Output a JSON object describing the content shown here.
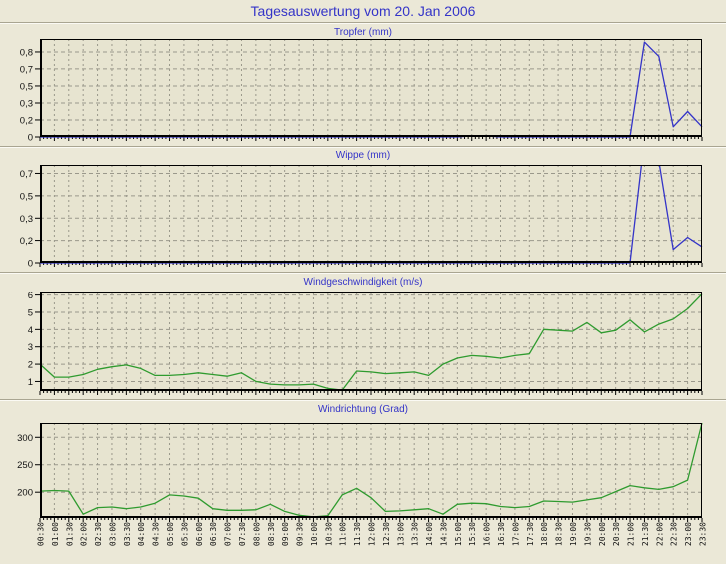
{
  "title": "Tagesauswertung vom 20. Jan 2006",
  "colors": {
    "background": "#ebe8d7",
    "plot_bg": "#e7e4d0",
    "grid": "#9a988b",
    "axis": "#000000",
    "title_blue": "#3434c8",
    "rain_line": "#3434c8",
    "wind_line": "#2f9b2f"
  },
  "chart_data": [
    {
      "type": "line",
      "title": "Tropfer (mm)",
      "legend_position": "none",
      "grid": true,
      "color_key": "rain_line",
      "color": "#3434c8",
      "ylim": [
        0,
        0.96
      ],
      "yticks": [
        {
          "v": 0.833,
          "label": "0,8"
        },
        {
          "v": 0.667,
          "label": "0,7"
        },
        {
          "v": 0.5,
          "label": "0,5"
        },
        {
          "v": 0.333,
          "label": "0,3"
        },
        {
          "v": 0.167,
          "label": "0,2"
        },
        {
          "v": 0,
          "label": "0"
        }
      ],
      "categories": [
        "00:30",
        "01:00",
        "01:30",
        "02:00",
        "02:30",
        "03:00",
        "03:30",
        "04:00",
        "04:30",
        "05:00",
        "05:30",
        "06:00",
        "06:30",
        "07:00",
        "07:30",
        "08:00",
        "08:30",
        "09:00",
        "09:30",
        "10:00",
        "10:30",
        "11:00",
        "11:30",
        "12:00",
        "12:30",
        "13:00",
        "13:30",
        "14:00",
        "14:30",
        "15:00",
        "15:30",
        "16:00",
        "16:30",
        "17:00",
        "17:30",
        "18:00",
        "18:30",
        "19:00",
        "19:30",
        "20:00",
        "20:30",
        "21:00",
        "21:30",
        "22:00",
        "22:30",
        "23:00",
        "23:30"
      ],
      "values": [
        0,
        0,
        0,
        0,
        0,
        0,
        0,
        0,
        0,
        0,
        0,
        0,
        0,
        0,
        0,
        0,
        0,
        0,
        0,
        0,
        0,
        0,
        0,
        0,
        0,
        0,
        0,
        0,
        0,
        0,
        0.01,
        0.01,
        0,
        0,
        0,
        0,
        0,
        0,
        0,
        0,
        0,
        0,
        0.93,
        0.79,
        0.1,
        0.25,
        0.1
      ]
    },
    {
      "type": "line",
      "title": "Wippe (mm)",
      "legend_position": "none",
      "grid": true,
      "color_key": "rain_line",
      "color": "#3434c8",
      "ylim": [
        0,
        0.73
      ],
      "yticks": [
        {
          "v": 0.667,
          "label": "0,7"
        },
        {
          "v": 0.5,
          "label": "0,5"
        },
        {
          "v": 0.333,
          "label": "0,3"
        },
        {
          "v": 0.167,
          "label": "0,2"
        },
        {
          "v": 0,
          "label": "0"
        }
      ],
      "categories": [
        "00:30",
        "01:00",
        "01:30",
        "02:00",
        "02:30",
        "03:00",
        "03:30",
        "04:00",
        "04:30",
        "05:00",
        "05:30",
        "06:00",
        "06:30",
        "07:00",
        "07:30",
        "08:00",
        "08:30",
        "09:00",
        "09:30",
        "10:00",
        "10:30",
        "11:00",
        "11:30",
        "12:00",
        "12:30",
        "13:00",
        "13:30",
        "14:00",
        "14:30",
        "15:00",
        "15:30",
        "16:00",
        "16:30",
        "17:00",
        "17:30",
        "18:00",
        "18:30",
        "19:00",
        "19:30",
        "20:00",
        "20:30",
        "21:00",
        "21:30",
        "22:00",
        "22:30",
        "23:00",
        "23:30"
      ],
      "values": [
        0,
        0,
        0,
        0,
        0,
        0,
        0,
        0,
        0,
        0,
        0,
        0,
        0,
        0,
        0,
        0,
        0,
        0,
        0,
        0,
        0,
        0,
        0,
        0,
        0,
        0,
        0,
        0,
        0,
        0,
        0,
        0,
        0,
        0,
        0,
        0,
        0,
        0,
        0,
        0,
        0,
        0,
        0.92,
        0.76,
        0.1,
        0.19,
        0.12
      ]
    },
    {
      "type": "line",
      "title": "Windgeschwindigkeit (m/s)",
      "legend_position": "none",
      "grid": true,
      "color_key": "wind_line",
      "color": "#2f9b2f",
      "ylim": [
        0.45,
        6.15
      ],
      "yticks": [
        {
          "v": 6,
          "label": "6"
        },
        {
          "v": 5,
          "label": "5"
        },
        {
          "v": 4,
          "label": "4"
        },
        {
          "v": 3,
          "label": "3"
        },
        {
          "v": 2,
          "label": "2"
        },
        {
          "v": 1,
          "label": "1"
        }
      ],
      "categories": [
        "00:30",
        "01:00",
        "01:30",
        "02:00",
        "02:30",
        "03:00",
        "03:30",
        "04:00",
        "04:30",
        "05:00",
        "05:30",
        "06:00",
        "06:30",
        "07:00",
        "07:30",
        "08:00",
        "08:30",
        "09:00",
        "09:30",
        "10:00",
        "10:30",
        "11:00",
        "11:30",
        "12:00",
        "12:30",
        "13:00",
        "13:30",
        "14:00",
        "14:30",
        "15:00",
        "15:30",
        "16:00",
        "16:30",
        "17:00",
        "17:30",
        "18:00",
        "18:30",
        "19:00",
        "19:30",
        "20:00",
        "20:30",
        "21:00",
        "21:30",
        "22:00",
        "22:30",
        "23:00",
        "23:30"
      ],
      "values": [
        2.0,
        1.25,
        1.25,
        1.4,
        1.7,
        1.85,
        1.95,
        1.75,
        1.35,
        1.35,
        1.4,
        1.5,
        1.4,
        1.3,
        1.5,
        1.0,
        0.85,
        0.8,
        0.8,
        0.85,
        0.6,
        0.5,
        1.6,
        1.55,
        1.45,
        1.5,
        1.55,
        1.35,
        2.0,
        2.35,
        2.5,
        2.45,
        2.35,
        2.5,
        2.6,
        4.0,
        3.95,
        3.9,
        4.4,
        3.8,
        3.95,
        4.55,
        3.85,
        4.3,
        4.6,
        5.2,
        6.05
      ]
    },
    {
      "type": "line",
      "title": "Windrichtung (Grad)",
      "legend_position": "none",
      "grid": true,
      "color_key": "wind_line",
      "color": "#2f9b2f",
      "ylim": [
        153,
        326
      ],
      "yticks": [
        {
          "v": 300,
          "label": "300"
        },
        {
          "v": 250,
          "label": "250"
        },
        {
          "v": 200,
          "label": "200"
        }
      ],
      "categories": [
        "00:30",
        "01:00",
        "01:30",
        "02:00",
        "02:30",
        "03:00",
        "03:30",
        "04:00",
        "04:30",
        "05:00",
        "05:30",
        "06:00",
        "06:30",
        "07:00",
        "07:30",
        "08:00",
        "08:30",
        "09:00",
        "09:30",
        "10:00",
        "10:30",
        "11:00",
        "11:30",
        "12:00",
        "12:30",
        "13:00",
        "13:30",
        "14:00",
        "14:30",
        "15:00",
        "15:30",
        "16:00",
        "16:30",
        "17:00",
        "17:30",
        "18:00",
        "18:30",
        "19:00",
        "19:30",
        "20:00",
        "20:30",
        "21:00",
        "21:30",
        "22:00",
        "22:30",
        "23:00",
        "23:30"
      ],
      "values": [
        202,
        203,
        202,
        160,
        172,
        173,
        170,
        173,
        180,
        195,
        193,
        189,
        170,
        167,
        167,
        168,
        178,
        165,
        158,
        155,
        157,
        195,
        207,
        190,
        165,
        166,
        168,
        170,
        160,
        178,
        180,
        179,
        174,
        172,
        174,
        184,
        183,
        182,
        186,
        190,
        201,
        212,
        208,
        205,
        210,
        222,
        326
      ]
    }
  ]
}
